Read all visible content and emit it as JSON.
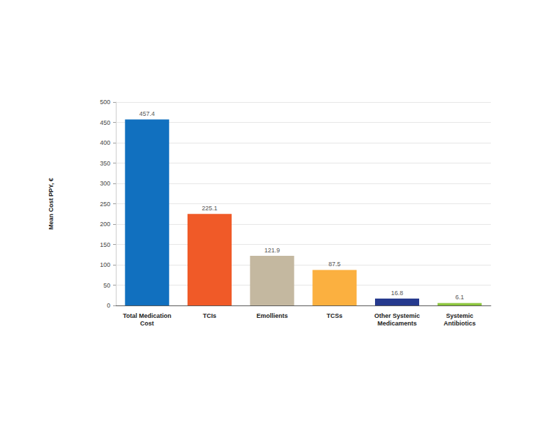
{
  "chart_data": {
    "type": "bar",
    "ylabel": "Mean Cost PPY, €",
    "categories": [
      "Total Medication\nCost",
      "TCIs",
      "Emollients",
      "TCSs",
      "Other Systemic\nMedicaments",
      "Systemic\nAntibiotics"
    ],
    "values": [
      457.4,
      225.1,
      121.9,
      87.5,
      16.8,
      6.1
    ],
    "colors": [
      "#1170bf",
      "#f05a28",
      "#c4b8a0",
      "#fbb040",
      "#263a8e",
      "#8dc63f"
    ],
    "ylim": [
      0,
      500
    ],
    "yticks": [
      0,
      50,
      100,
      150,
      200,
      250,
      300,
      350,
      400,
      450,
      500
    ],
    "grid": true,
    "data_labels": true
  }
}
